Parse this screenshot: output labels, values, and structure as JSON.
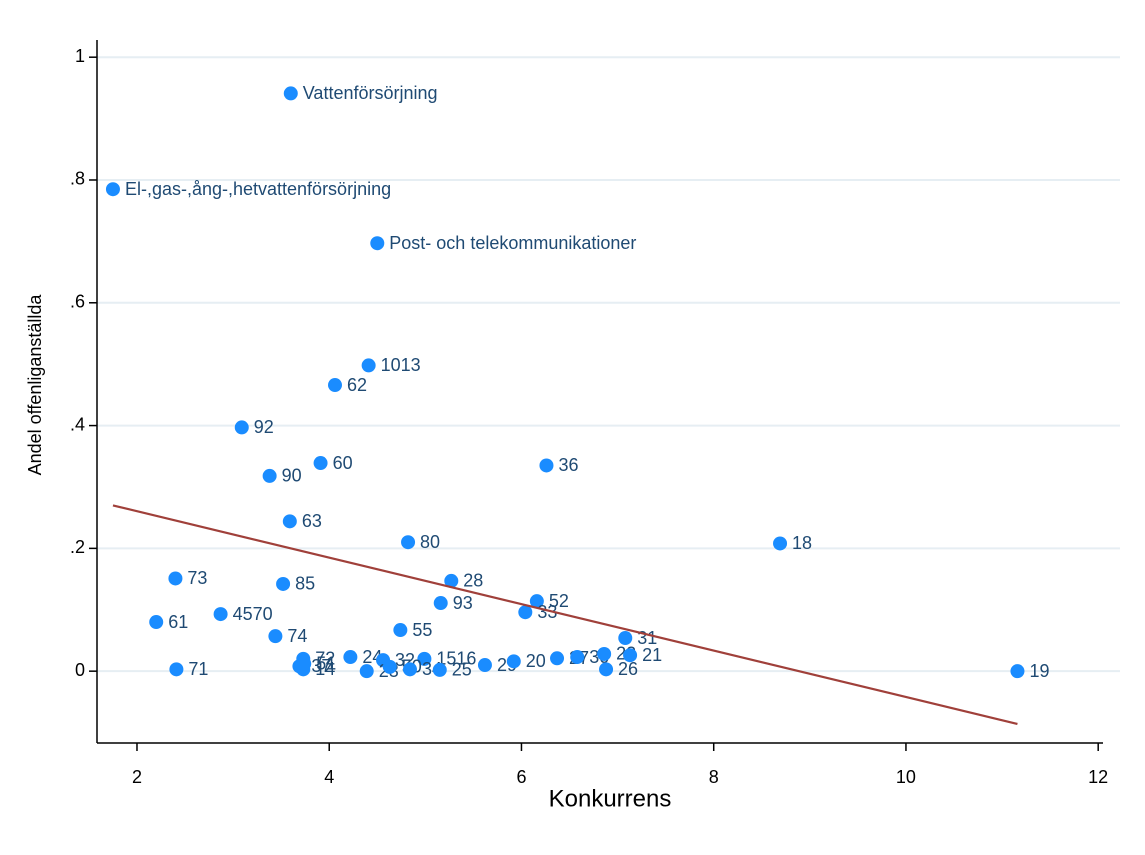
{
  "chart_data": {
    "type": "scatter",
    "x_label": "Konkurrens",
    "y_label": "Andel offenliganställda",
    "xlim": [
      1.584,
      12.05
    ],
    "ylim": [
      -0.117,
      1.028
    ],
    "xticks": [
      2,
      4,
      6,
      8,
      10,
      12
    ],
    "yticks": [
      0,
      {
        "value": 0.2,
        "label": ".2"
      },
      {
        "value": 0.4,
        "label": ".4"
      },
      {
        "value": 0.6,
        "label": ".6"
      },
      {
        "value": 0.8,
        "label": ".8"
      },
      1
    ],
    "grid": true,
    "color": "#1a8cff",
    "labels": [
      "Vattenförsörjning",
      "El-,gas-,ång-,hetvattenförsörjning",
      "Post- och telekommunikationer",
      "1013",
      "62",
      "92",
      "60",
      "36",
      "90",
      "63",
      "80",
      "18",
      "73",
      "28",
      "85",
      "93",
      "52",
      "33",
      "4570",
      "61",
      "55",
      "74",
      "31",
      "71",
      "72",
      "37",
      "51",
      "14",
      "24",
      "32",
      "1516",
      "23",
      "50",
      "34",
      "25",
      "29",
      "20",
      "27",
      "30",
      "22",
      "21",
      "26",
      "19"
    ],
    "x": [
      3.6,
      1.75,
      4.5,
      4.41,
      4.06,
      3.09,
      3.91,
      6.26,
      3.38,
      3.59,
      4.82,
      8.69,
      2.4,
      5.27,
      3.52,
      5.16,
      6.16,
      6.04,
      2.87,
      2.2,
      4.74,
      3.44,
      7.08,
      2.41,
      3.73,
      3.69,
      3.74,
      3.73,
      4.22,
      4.56,
      4.99,
      4.39,
      4.63,
      4.84,
      5.15,
      5.62,
      5.92,
      6.37,
      6.58,
      6.86,
      7.13,
      6.88,
      11.16
    ],
    "y": [
      0.941,
      0.785,
      0.697,
      0.498,
      0.466,
      0.397,
      0.339,
      0.335,
      0.318,
      0.244,
      0.21,
      0.208,
      0.151,
      0.147,
      0.142,
      0.111,
      0.114,
      0.096,
      0.093,
      0.08,
      0.067,
      0.057,
      0.054,
      0.003,
      0.02,
      0.008,
      0.012,
      0.003,
      0.023,
      0.018,
      0.02,
      0.0,
      0.007,
      0.003,
      0.002,
      0.01,
      0.016,
      0.021,
      0.023,
      0.028,
      0.026,
      0.003,
      0.0
    ],
    "fit": {
      "x": [
        1.75,
        11.16
      ],
      "y": [
        0.27,
        -0.086
      ],
      "color": "#a0403a"
    }
  }
}
